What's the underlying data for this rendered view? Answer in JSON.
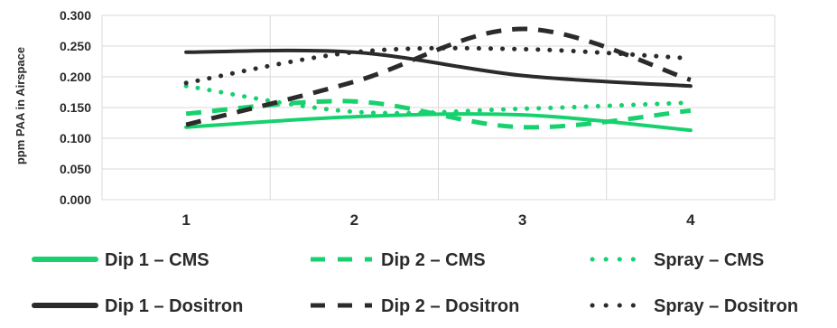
{
  "chart_data": {
    "type": "line",
    "title": "",
    "xlabel": "",
    "ylabel": "ppm PAA in Airspace",
    "x": [
      1,
      2,
      3,
      4
    ],
    "x_tick_labels": [
      "1",
      "2",
      "3",
      "4"
    ],
    "xlim": [
      0.5,
      4.5
    ],
    "ylim": [
      0,
      0.3
    ],
    "y_tick_labels": [
      "0.000",
      "0.050",
      "0.100",
      "0.150",
      "0.200",
      "0.250",
      "0.300"
    ],
    "grid": true,
    "legend_position": "bottom",
    "series": [
      {
        "name": "Dip 1 – CMS",
        "color": "#17d16f",
        "style": "solid",
        "values": [
          0.118,
          0.135,
          0.138,
          0.113
        ]
      },
      {
        "name": "Dip 2 – CMS",
        "color": "#17d16f",
        "style": "dashed",
        "values": [
          0.14,
          0.16,
          0.118,
          0.145
        ]
      },
      {
        "name": "Spray – CMS",
        "color": "#17d16f",
        "style": "dotted",
        "values": [
          0.185,
          0.143,
          0.148,
          0.158
        ]
      },
      {
        "name": "Dip 1 – Dositron",
        "color": "#2b2b2b",
        "style": "solid",
        "values": [
          0.24,
          0.24,
          0.202,
          0.185
        ]
      },
      {
        "name": "Dip 2 – Dositron",
        "color": "#2b2b2b",
        "style": "dashed",
        "values": [
          0.122,
          0.192,
          0.278,
          0.195
        ]
      },
      {
        "name": "Spray – Dositron",
        "color": "#2b2b2b",
        "style": "dotted",
        "values": [
          0.19,
          0.24,
          0.245,
          0.23
        ]
      }
    ]
  }
}
